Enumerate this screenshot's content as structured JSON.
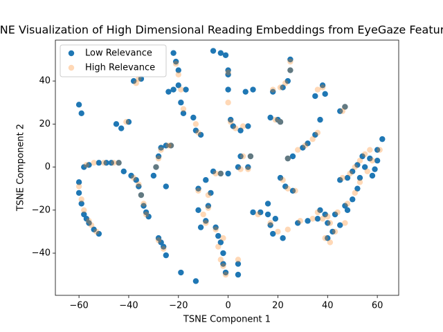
{
  "chart_data": {
    "type": "scatter",
    "title": "TSNE Visualization of High Dimensional Reading Embeddings from EyeGaze Features",
    "x_label": "TSNE Component 1",
    "y_label": "TSNE Component 2",
    "xlim": [
      -69.5,
      68.6
    ],
    "ylim": [
      -59.6,
      59.0
    ],
    "xticks": [
      {
        "value": -60,
        "label": "−60"
      },
      {
        "value": -40,
        "label": "−40"
      },
      {
        "value": -20,
        "label": "−20"
      },
      0,
      20,
      40,
      60
    ],
    "yticks": [
      {
        "value": -40,
        "label": "−40"
      },
      {
        "value": -20,
        "label": "−20"
      },
      0,
      20,
      40
    ],
    "legend": "upper left",
    "series": [
      {
        "name": "Low Relevance",
        "color": "#1f77b4",
        "alpha": 1,
        "x": [
          -60,
          -60,
          -59,
          -58,
          -57,
          -56,
          -54,
          -52,
          -58,
          -56,
          -52,
          -49,
          -47,
          -44,
          -60,
          -59,
          -45,
          -43,
          -40,
          -42,
          -39,
          -37,
          -36,
          -35,
          -34,
          -33,
          -32,
          -38,
          -35,
          -30,
          -29,
          -28,
          -27,
          -28,
          -27,
          -26,
          -25,
          -25,
          -22,
          -21,
          -20,
          -20,
          -19,
          -18,
          -24,
          -22,
          -17,
          -25,
          -23,
          -14,
          -13,
          -11,
          -12,
          -12,
          -11,
          -9,
          -8,
          -7,
          -9,
          -19,
          -13,
          -6,
          -3,
          -1,
          0,
          0,
          0,
          1,
          2,
          5,
          8,
          -6,
          -3,
          0,
          -5,
          -4,
          -3,
          -2,
          -2,
          -1,
          4,
          4,
          4,
          8,
          5,
          9,
          7,
          10,
          18,
          22,
          24,
          25,
          25,
          17,
          20,
          21,
          21,
          23,
          26,
          24,
          26,
          30,
          32,
          35,
          37,
          35,
          38,
          39,
          45,
          47,
          10,
          13,
          16,
          17,
          18,
          22,
          28,
          32,
          36,
          40,
          43,
          47,
          50,
          52,
          53,
          55,
          57,
          60,
          62,
          16,
          19,
          40,
          42,
          45,
          48,
          45,
          48,
          50,
          52,
          54,
          60,
          59,
          58,
          37,
          39
        ],
        "y": [
          -7,
          -12,
          -17,
          -22,
          -24,
          -26,
          -29,
          -31,
          0,
          1,
          2,
          2,
          2,
          2,
          29,
          25,
          20,
          18,
          21,
          -2,
          -4,
          -6,
          -9,
          -13,
          -18,
          -21,
          -23,
          40,
          41,
          -4,
          0,
          5,
          9,
          -33,
          -35,
          -37,
          -41,
          -9,
          53,
          49,
          45,
          38,
          30,
          25,
          35,
          36,
          36,
          10,
          10,
          23,
          17,
          15,
          -10,
          -20,
          -28,
          -25,
          -18,
          -12,
          -6,
          -49,
          -53,
          54,
          53,
          52,
          45,
          43,
          36,
          22,
          19,
          17,
          19,
          -2,
          -3,
          -3,
          -28,
          -32,
          -35,
          -40,
          -45,
          -49,
          -45,
          -50,
          0,
          0,
          5,
          5,
          35,
          36,
          35,
          37,
          40,
          45,
          50,
          23,
          22,
          21,
          -5,
          -9,
          -11,
          4,
          5,
          9,
          11,
          15,
          22,
          33,
          38,
          34,
          26,
          28,
          -21,
          -21,
          -22,
          -27,
          -31,
          -33,
          -26,
          -25,
          -24,
          -26,
          -22,
          -18,
          -15,
          -10,
          -5,
          0,
          4,
          8,
          13,
          -17,
          -24,
          -33,
          -30,
          -27,
          -20,
          -6,
          -5,
          -2,
          1,
          5,
          3,
          -1,
          -4,
          -20,
          -22
        ]
      },
      {
        "name": "High Relevance",
        "color": "#ff7f0e",
        "alpha": 0.3,
        "x": [
          -60,
          -59,
          -58,
          -56,
          -55,
          -53,
          -57,
          -54,
          -50,
          -46,
          -44,
          -41,
          -38,
          -36,
          -35,
          -34,
          -33,
          -37,
          -36,
          -29,
          -28,
          -27,
          -28,
          -26,
          -21,
          -20,
          -19,
          -18,
          -23,
          -24,
          -13,
          -12,
          -12,
          -10,
          -9,
          -8,
          -8,
          -5,
          -3,
          0,
          0,
          1,
          3,
          6,
          -5,
          -2,
          -4,
          -3,
          -2,
          -1,
          4,
          5,
          8,
          6,
          9,
          18,
          21,
          23,
          25,
          25,
          19,
          21,
          22,
          24,
          27,
          24,
          28,
          31,
          34,
          36,
          36,
          38,
          46,
          47,
          12,
          17,
          20,
          24,
          29,
          34,
          38,
          41,
          44,
          48,
          51,
          53,
          56,
          58,
          61,
          39,
          43,
          47,
          46,
          49,
          51,
          53,
          55,
          57,
          36,
          40,
          41
        ],
        "y": [
          -9,
          -15,
          -20,
          -25,
          -27,
          -30,
          1,
          2,
          2,
          2,
          2,
          21,
          -5,
          -8,
          -13,
          -17,
          -22,
          39,
          41,
          0,
          4,
          8,
          -34,
          -38,
          48,
          43,
          36,
          27,
          10,
          10,
          20,
          16,
          -11,
          -22,
          -26,
          -19,
          -13,
          -3,
          -3,
          44,
          30,
          21,
          18,
          19,
          -29,
          -33,
          -37,
          -43,
          -46,
          -50,
          -43,
          -1,
          -1,
          5,
          5,
          36,
          37,
          39,
          45,
          49,
          22,
          21,
          -6,
          -10,
          -11,
          4,
          8,
          10,
          13,
          16,
          36,
          37,
          26,
          28,
          -22,
          -26,
          -30,
          -29,
          -25,
          -24,
          -24,
          -26,
          -21,
          -17,
          -12,
          -7,
          -2,
          3,
          8,
          -33,
          -30,
          -26,
          -5,
          -3,
          0,
          3,
          6,
          8,
          -21,
          -23,
          -35
        ]
      }
    ]
  }
}
